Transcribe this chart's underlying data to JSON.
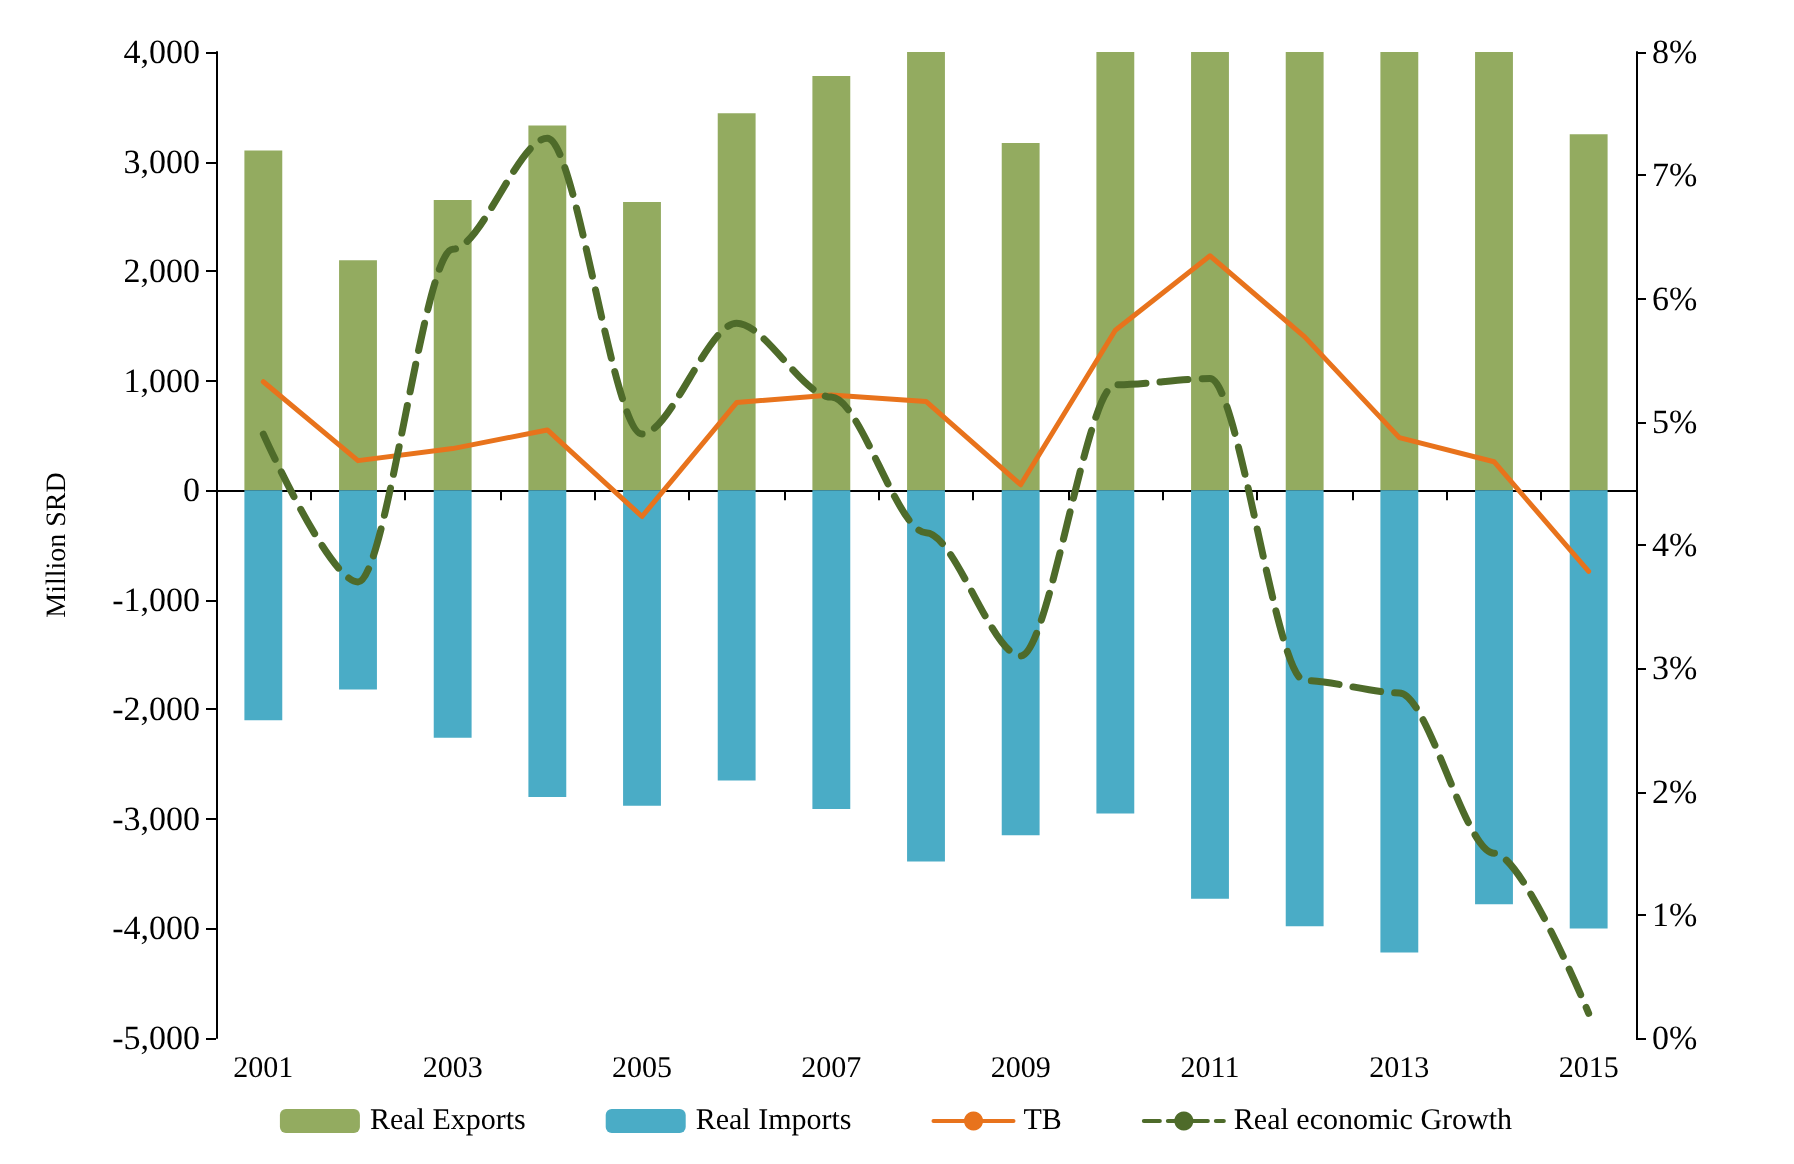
{
  "chart_data": {
    "type": "bar",
    "ylabel": "Million SRD",
    "stacked": true,
    "legend": "bottom",
    "categories": [
      "2001",
      null,
      "2003",
      null,
      "2005",
      null,
      "2007",
      null,
      "2009",
      null,
      "2011",
      null,
      "2013",
      null,
      "2015"
    ],
    "ylim": [
      -5000,
      4000
    ],
    "yticks": [
      {
        "value": -5000,
        "label": "-5,000"
      },
      {
        "value": -4000,
        "label": "-4,000"
      },
      {
        "value": -3000,
        "label": "-3,000"
      },
      {
        "value": -2000,
        "label": "-2,000"
      },
      {
        "value": -1000,
        "label": "-1,000"
      },
      0,
      {
        "value": 1000,
        "label": "1,000"
      },
      {
        "value": 2000,
        "label": "2,000"
      },
      {
        "value": 3000,
        "label": "3,000"
      },
      {
        "value": 4000,
        "label": "4,000"
      }
    ],
    "y2lim": [
      0,
      8
    ],
    "y2ticks": [
      {
        "value": 0,
        "label": "0%"
      },
      {
        "value": 1,
        "label": "1%"
      },
      {
        "value": 2,
        "label": "2%"
      },
      {
        "value": 3,
        "label": "3%"
      },
      {
        "value": 4,
        "label": "4%"
      },
      {
        "value": 5,
        "label": "5%"
      },
      {
        "value": 6,
        "label": "6%"
      },
      {
        "value": 7,
        "label": "7%"
      },
      {
        "value": 8,
        "label": "8%"
      }
    ],
    "series": [
      {
        "name": "Real Exports",
        "color": "#93ab60",
        "values": [
          3100,
          2100,
          2650,
          3330,
          2630,
          3440,
          3780,
          4000,
          3170,
          4000,
          4000,
          4000,
          4000,
          4000,
          3250
        ]
      },
      {
        "name": "Real Imports",
        "color": "#4aacc6",
        "values": [
          -2100,
          -1820,
          -2260,
          -2800,
          -2880,
          -2650,
          -2910,
          -3390,
          -3150,
          -2950,
          -3730,
          -3980,
          -4220,
          -3780,
          -4000
        ]
      },
      {
        "name": "TB",
        "type": "line",
        "color": "#e8731c",
        "line_style": "solid",
        "values": [
          990,
          270,
          380,
          550,
          -240,
          800,
          870,
          810,
          50,
          1460,
          2140,
          1400,
          480,
          260,
          -740
        ]
      },
      {
        "name": "Real economic Growth",
        "type": "line",
        "axis": "y2",
        "color": "#4e6b2a",
        "line_style": "dashed",
        "values": [
          4.9,
          3.7,
          6.4,
          7.3,
          4.9,
          5.8,
          5.2,
          4.1,
          3.1,
          5.3,
          5.35,
          2.9,
          2.8,
          1.5,
          0.2
        ]
      }
    ]
  }
}
